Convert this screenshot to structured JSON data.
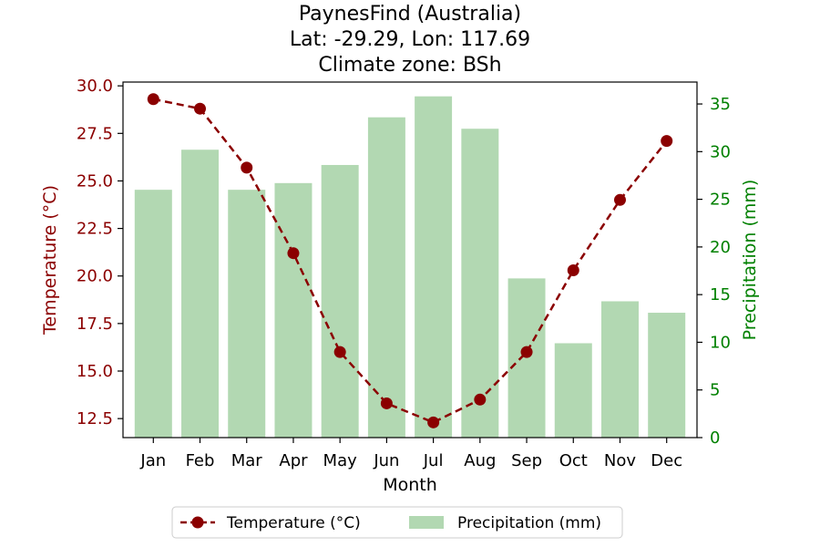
{
  "chart_data": {
    "type": "bar+line",
    "title_lines": [
      "PaynesFind (Australia)",
      "Lat: -29.29, Lon: 117.69",
      "Climate zone: BSh"
    ],
    "xlabel": "Month",
    "ylabel_left": "Temperature (°C)",
    "ylabel_right": "Precipitation (mm)",
    "categories": [
      "Jan",
      "Feb",
      "Mar",
      "Apr",
      "May",
      "Jun",
      "Jul",
      "Aug",
      "Sep",
      "Oct",
      "Nov",
      "Dec"
    ],
    "temperature": {
      "name": "Temperature (°C)",
      "values": [
        29.3,
        28.8,
        25.7,
        21.2,
        16.0,
        13.3,
        12.3,
        13.5,
        16.0,
        20.3,
        24.0,
        27.1
      ],
      "ylim": [
        11.5,
        30.2
      ],
      "ticks": [
        "12.5",
        "15.0",
        "17.5",
        "20.0",
        "22.5",
        "25.0",
        "27.5",
        "30.0"
      ],
      "color": "#8b0000"
    },
    "precipitation": {
      "name": "Precipitation (mm)",
      "values": [
        26.0,
        30.2,
        26.0,
        26.7,
        28.6,
        33.6,
        35.8,
        32.4,
        16.7,
        9.9,
        14.3,
        13.1
      ],
      "ylim": [
        0,
        37.3
      ],
      "ticks": [
        "0",
        "5",
        "10",
        "15",
        "20",
        "25",
        "30",
        "35"
      ],
      "color": "#b2d8b2"
    },
    "legend_position": "bottom-center",
    "grid": false
  },
  "colors": {
    "left_axis": "#8b0000",
    "right_axis": "#008000",
    "axis": "#000000"
  }
}
